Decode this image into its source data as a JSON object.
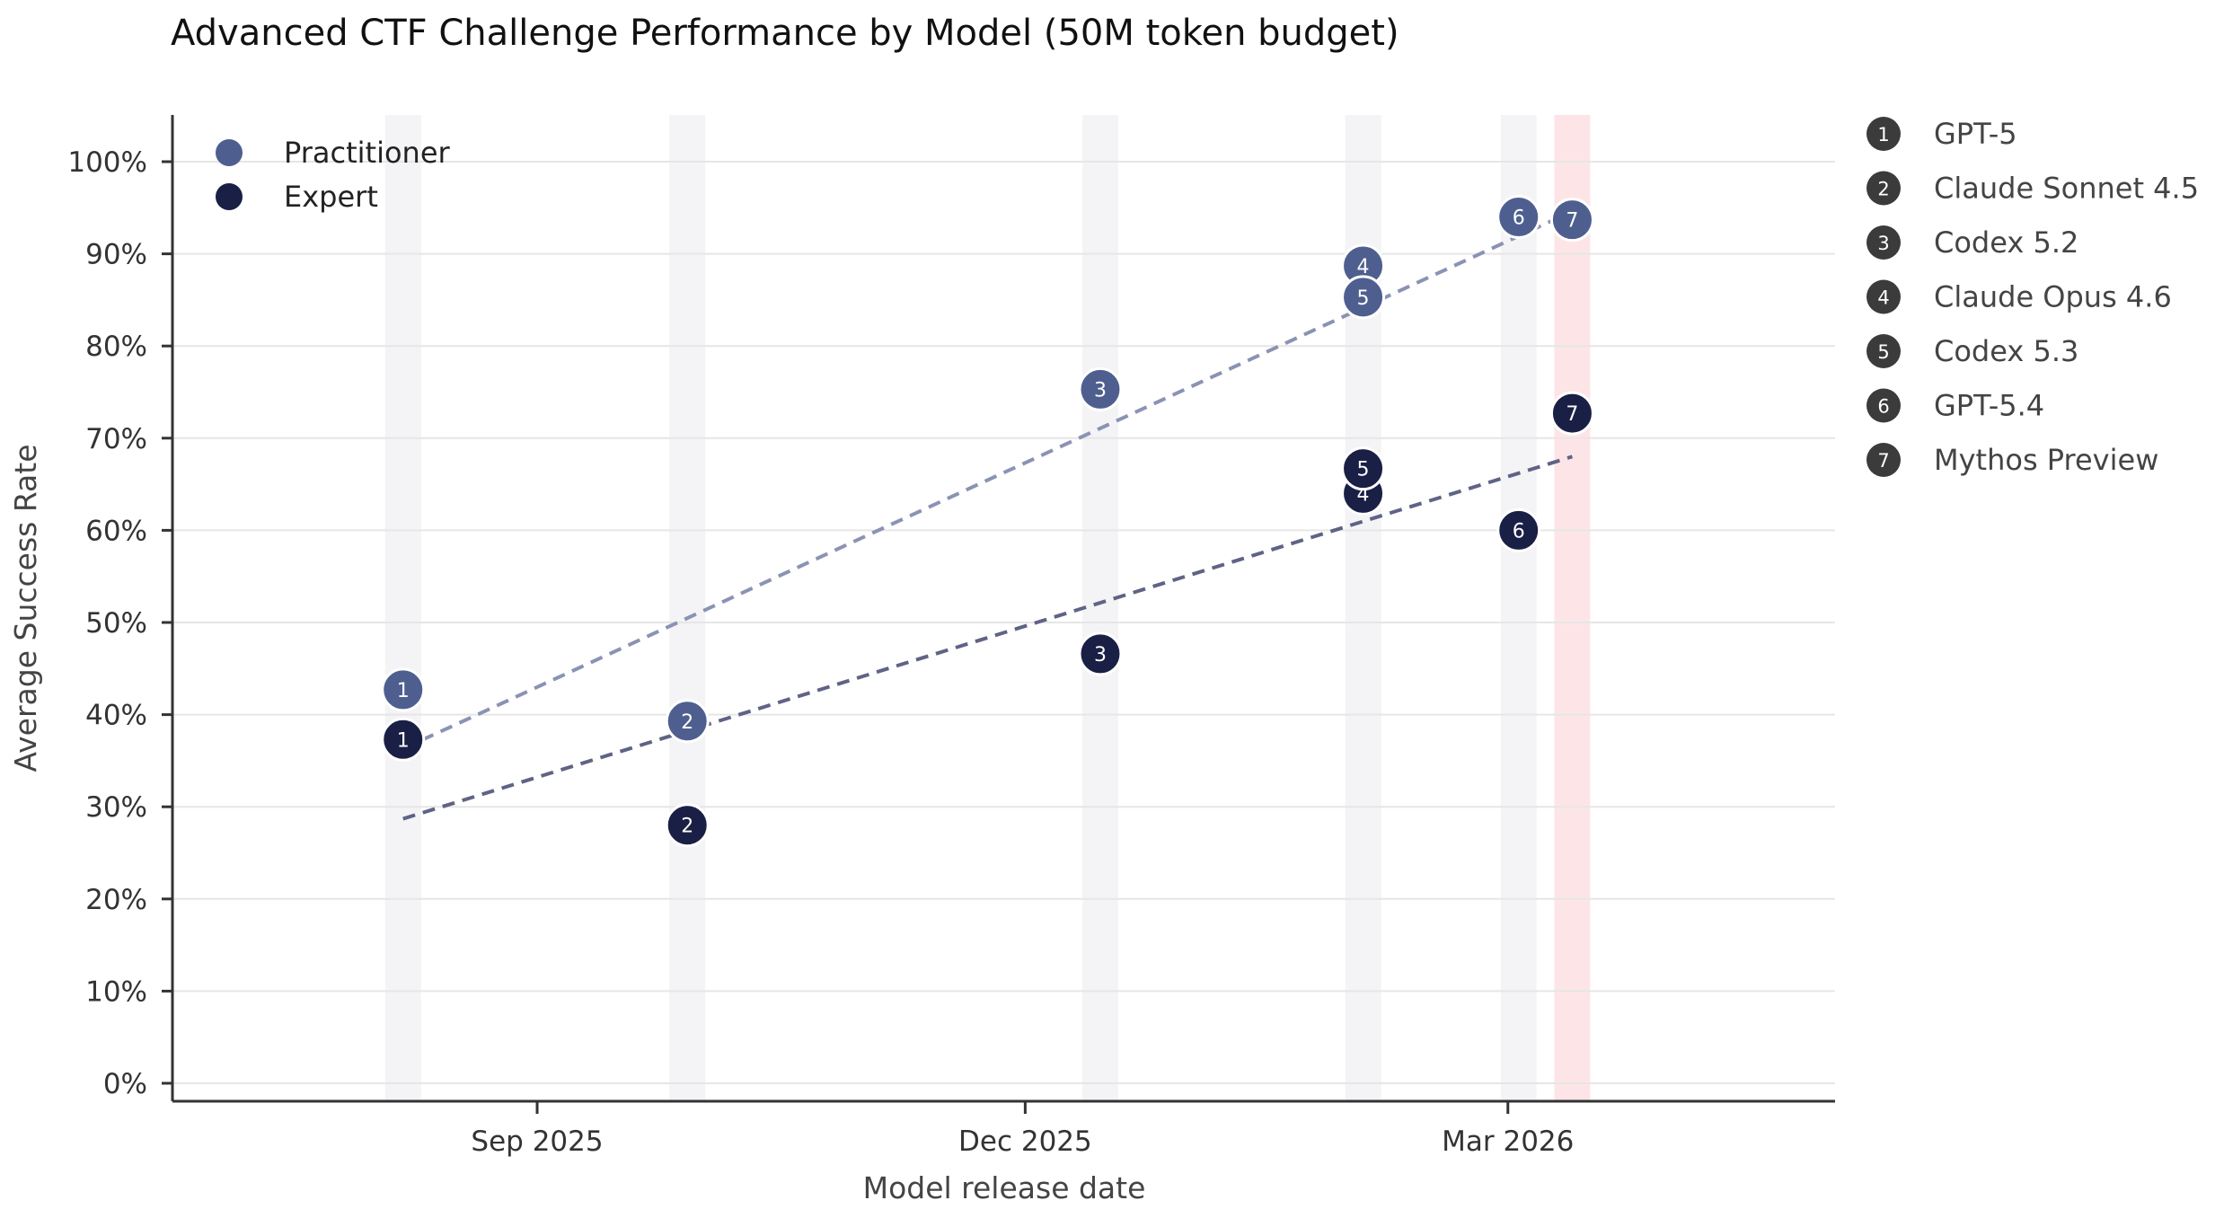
{
  "chart_data": {
    "type": "scatter",
    "title": "Advanced CTF Challenge Performance by Model (50M token budget)",
    "xlabel": "Model release date",
    "ylabel": "Average Success Rate",
    "ylim": [
      0,
      100
    ],
    "yticks": [
      "0%",
      "10%",
      "20%",
      "30%",
      "40%",
      "50%",
      "60%",
      "70%",
      "80%",
      "90%",
      "100%"
    ],
    "xlim": [
      "2025-06-25",
      "2026-05-01"
    ],
    "xticks": [
      {
        "date": "2025-09-01",
        "label": "Sep 2025"
      },
      {
        "date": "2025-12-01",
        "label": "Dec 2025"
      },
      {
        "date": "2026-03-01",
        "label": "Mar 2026"
      }
    ],
    "grid": "horizontal",
    "legend_position": "top-left",
    "models": [
      {
        "num": "1",
        "name": "GPT-5",
        "date": "2025-08-07",
        "highlight": false
      },
      {
        "num": "2",
        "name": "Claude Sonnet 4.5",
        "date": "2025-09-29",
        "highlight": false
      },
      {
        "num": "3",
        "name": "Codex 5.2",
        "date": "2025-12-15",
        "highlight": false
      },
      {
        "num": "4",
        "name": "Claude Opus 4.6",
        "date": "2026-02-02",
        "highlight": false
      },
      {
        "num": "5",
        "name": "Codex 5.3",
        "date": "2026-02-02",
        "highlight": false
      },
      {
        "num": "6",
        "name": "GPT-5.4",
        "date": "2026-03-03",
        "highlight": false
      },
      {
        "num": "7",
        "name": "Mythos Preview",
        "date": "2026-03-13",
        "highlight": true
      }
    ],
    "series": [
      {
        "name": "Practitioner",
        "color": "#4e5f8f",
        "trend_color": "#8a93b3",
        "values": [
          42.7,
          39.3,
          75.3,
          88.7,
          85.3,
          94.0,
          93.7
        ],
        "trend": [
          36.3,
          94.6
        ]
      },
      {
        "name": "Expert",
        "color": "#1a1f45",
        "trend_color": "#5f6385",
        "values": [
          37.3,
          28.0,
          46.6,
          64.0,
          66.7,
          60.0,
          72.7
        ],
        "trend": [
          28.7,
          68.0
        ]
      }
    ],
    "label_color": "#444444"
  }
}
